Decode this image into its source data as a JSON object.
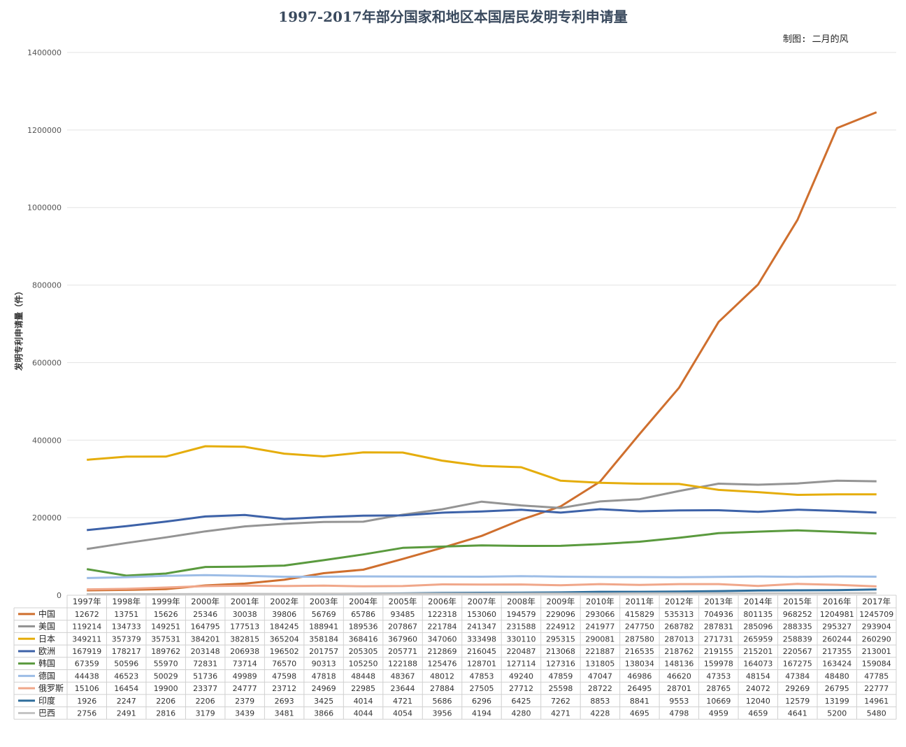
{
  "title": "1997-2017年部分国家和地区本国居民发明专利申请量",
  "credit": "制图: 二月的风",
  "chart_data": {
    "type": "line",
    "title": "1997-2017年部分国家和地区本国居民发明专利申请量",
    "ylabel": "发明专利申请量（件）",
    "ylim": [
      0,
      1400000
    ],
    "yticks": [
      "0",
      "200000",
      "400000",
      "600000",
      "800000",
      "1000000",
      "1200000",
      "1400000"
    ],
    "grid": true,
    "legend": "bottom data table",
    "categories": [
      "1997年",
      "1998年",
      "1999年",
      "2000年",
      "2001年",
      "2002年",
      "2003年",
      "2004年",
      "2005年",
      "2006年",
      "2007年",
      "2008年",
      "2009年",
      "2010年",
      "2011年",
      "2012年",
      "2013年",
      "2014年",
      "2015年",
      "2016年",
      "2017年"
    ],
    "series": [
      {
        "name": "中国",
        "color": "#cf6f2e",
        "values": [
          12672,
          13751,
          15626,
          25346,
          30038,
          39806,
          56769,
          65786,
          93485,
          122318,
          153060,
          194579,
          229096,
          293066,
          415829,
          535313,
          704936,
          801135,
          968252,
          1204981,
          1245709
        ]
      },
      {
        "name": "美国",
        "color": "#949494",
        "values": [
          119214,
          134733,
          149251,
          164795,
          177513,
          184245,
          188941,
          189536,
          207867,
          221784,
          241347,
          231588,
          224912,
          241977,
          247750,
          268782,
          287831,
          285096,
          288335,
          295327,
          293904
        ]
      },
      {
        "name": "日本",
        "color": "#e5ad0c",
        "values": [
          349211,
          357379,
          357531,
          384201,
          382815,
          365204,
          358184,
          368416,
          367960,
          347060,
          333498,
          330110,
          295315,
          290081,
          287580,
          287013,
          271731,
          265959,
          258839,
          260244,
          260290
        ]
      },
      {
        "name": "欧洲",
        "color": "#3d62a8",
        "values": [
          167919,
          178217,
          189762,
          203148,
          206938,
          196502,
          201757,
          205305,
          205771,
          212869,
          216045,
          220487,
          213068,
          221887,
          216535,
          218762,
          219155,
          215201,
          220567,
          217355,
          213001
        ]
      },
      {
        "name": "韩国",
        "color": "#5a9a3e",
        "values": [
          67359,
          50596,
          55970,
          72831,
          73714,
          76570,
          90313,
          105250,
          122188,
          125476,
          128701,
          127114,
          127316,
          131805,
          138034,
          148136,
          159978,
          164073,
          167275,
          163424,
          159084
        ]
      },
      {
        "name": "德国",
        "color": "#9dbde6",
        "values": [
          44438,
          46523,
          50029,
          51736,
          49989,
          47598,
          47818,
          48448,
          48367,
          48012,
          47853,
          49240,
          47859,
          47047,
          46986,
          46620,
          47353,
          48154,
          47384,
          48480,
          47785
        ]
      },
      {
        "name": "俄罗斯",
        "color": "#f0a78a",
        "values": [
          15106,
          16454,
          19900,
          23377,
          24777,
          23712,
          24969,
          22985,
          23644,
          27884,
          27505,
          27712,
          25598,
          28722,
          26495,
          28701,
          28765,
          24072,
          29269,
          26795,
          22777
        ]
      },
      {
        "name": "印度",
        "color": "#2f6e9c",
        "values": [
          1926,
          2247,
          2206,
          2206,
          2379,
          2693,
          3425,
          4014,
          4721,
          5686,
          6296,
          6425,
          7262,
          8853,
          8841,
          9553,
          10669,
          12040,
          12579,
          13199,
          14961
        ]
      },
      {
        "name": "巴西",
        "color": "#c4c4c4",
        "values": [
          2756,
          2491,
          2816,
          3179,
          3439,
          3481,
          3866,
          4044,
          4054,
          3956,
          4194,
          4280,
          4271,
          4228,
          4695,
          4798,
          4959,
          4659,
          4641,
          5200,
          5480
        ]
      }
    ]
  }
}
